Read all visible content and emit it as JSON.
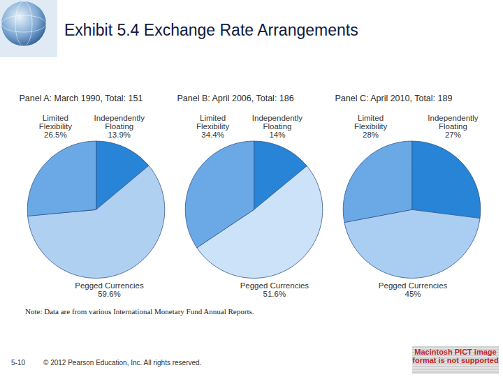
{
  "slide": {
    "title": "Exhibit 5.4  Exchange Rate Arrangements",
    "note": "Note: Data are from various International Monetary Fund Annual Reports.",
    "page": "5-10",
    "copyright": "© 2012 Pearson Education, Inc. All rights reserved.",
    "placeholder": "Macintosh PICT image format is not supported"
  },
  "chart_data": [
    {
      "type": "pie",
      "title": "Panel A: March 1990, Total: 151",
      "categories": [
        "Independently Floating",
        "Pegged Currencies",
        "Limited Flexibility"
      ],
      "values": [
        13.9,
        59.6,
        26.5
      ],
      "value_labels": [
        "13.9%",
        "59.6%",
        "26.5%"
      ],
      "colors": [
        "#2784d6",
        "#b0d0f2",
        "#6ba9e6"
      ],
      "data_labels": true
    },
    {
      "type": "pie",
      "title": "Panel B: April 2006, Total: 186",
      "categories": [
        "Independently Floating",
        "Pegged Currencies",
        "Limited Flexibility"
      ],
      "values": [
        14,
        51.6,
        34.4
      ],
      "value_labels": [
        "14%",
        "51.6%",
        "34.4%"
      ],
      "colors": [
        "#2784d6",
        "#cbe2f8",
        "#6ba9e6"
      ],
      "data_labels": true
    },
    {
      "type": "pie",
      "title": "Panel C: April 2010, Total: 189",
      "categories": [
        "Independently Floating",
        "Pegged Currencies",
        "Limited Flexibility"
      ],
      "values": [
        27,
        45,
        28
      ],
      "value_labels": [
        "27%",
        "45%",
        "28%"
      ],
      "colors": [
        "#2784d6",
        "#aacdf2",
        "#6ba9e6"
      ],
      "data_labels": true
    }
  ]
}
